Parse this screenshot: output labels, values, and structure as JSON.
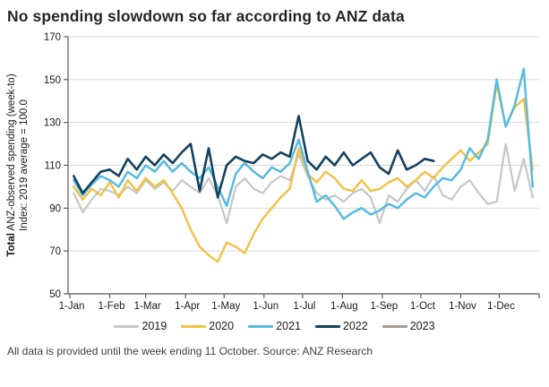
{
  "title": "No spending slowdown so far according to ANZ data",
  "footer": "All data is provided until the week ending 11 October. Source: ANZ Research",
  "chart_data": {
    "type": "line",
    "title": "No spending slowdown so far according to ANZ data",
    "ylabel": {
      "line1_bold": "Total",
      "line1_rest": " ANZ-observed spending (week-to)",
      "line2": "Index: 2019 average = 100.0"
    },
    "ylim": [
      50,
      170
    ],
    "yticks": [
      170,
      150,
      130,
      110,
      90,
      70,
      50
    ],
    "x_range_days": [
      0,
      365
    ],
    "xticks": {
      "labels": [
        "1-Jan",
        "1-Feb",
        "1-Mar",
        "1-Apr",
        "1-May",
        "1-Jun",
        "1-Jul",
        "1-Aug",
        "1-Sep",
        "1-Oct",
        "1-Nov",
        "1-Dec"
      ],
      "days": [
        0,
        31,
        59,
        90,
        120,
        151,
        181,
        212,
        243,
        273,
        304,
        334
      ]
    },
    "grid": "horizontal",
    "gridline_color": "#d9d9d9",
    "axis_color": "#595959",
    "legend_position": "bottom",
    "series": [
      {
        "name": "2019",
        "color": "#c3c8c8",
        "stroke_width": 2.2,
        "start_day": 3,
        "step_days": 7,
        "values": [
          97,
          88,
          94,
          99,
          98,
          96,
          100,
          97,
          103,
          99,
          102,
          98,
          103,
          100,
          97,
          104,
          96,
          83,
          100,
          104,
          99,
          97,
          102,
          105,
          103,
          115,
          105,
          97,
          94,
          96,
          93,
          97,
          99,
          95,
          83,
          96,
          93,
          99,
          103,
          98,
          105,
          96,
          94,
          100,
          103,
          97,
          92,
          93,
          120,
          98,
          113,
          95
        ]
      },
      {
        "name": "2020",
        "color": "#f0c245",
        "stroke_width": 2.4,
        "start_day": 3,
        "step_days": 7,
        "values": [
          100,
          94,
          99,
          96,
          102,
          95,
          103,
          98,
          104,
          100,
          103,
          97,
          90,
          80,
          72,
          68,
          65,
          74,
          72,
          69,
          78,
          85,
          90,
          95,
          99,
          118,
          106,
          102,
          107,
          104,
          99,
          98,
          103,
          98,
          99,
          102,
          104,
          100,
          103,
          107,
          104,
          109,
          113,
          117,
          112,
          116,
          120,
          148,
          128,
          137,
          141,
          108
        ]
      },
      {
        "name": "2021",
        "color": "#58bbdf",
        "stroke_width": 2.5,
        "start_day": 3,
        "step_days": 7,
        "values": [
          103,
          96,
          101,
          105,
          103,
          100,
          107,
          104,
          110,
          107,
          112,
          107,
          111,
          107,
          104,
          109,
          100,
          91,
          106,
          111,
          107,
          104,
          109,
          107,
          111,
          122,
          107,
          93,
          96,
          91,
          85,
          88,
          90,
          87,
          89,
          92,
          90,
          94,
          97,
          95,
          100,
          104,
          103,
          108,
          118,
          113,
          122,
          150,
          128,
          138,
          155,
          100
        ]
      },
      {
        "name": "2022",
        "color": "#17405f",
        "stroke_width": 2.6,
        "start_day": 3,
        "step_days": 7,
        "values": [
          105,
          97,
          102,
          107,
          108,
          105,
          113,
          108,
          114,
          110,
          115,
          111,
          116,
          120,
          98,
          118,
          95,
          110,
          114,
          112,
          111,
          115,
          113,
          116,
          114,
          133,
          112,
          108,
          114,
          110,
          116,
          110,
          113,
          116,
          109,
          106,
          117,
          108,
          110,
          113,
          112
        ]
      },
      {
        "name": "2023",
        "color": "#a39b93",
        "stroke_width": 2.2,
        "start_day": 3,
        "step_days": 7,
        "values": []
      }
    ]
  }
}
